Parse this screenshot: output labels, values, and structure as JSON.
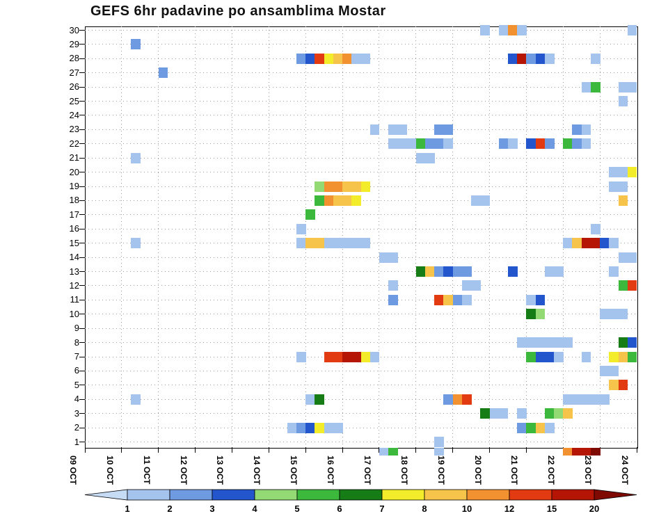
{
  "chart_data": {
    "type": "heatmap",
    "title": "GEFS 6hr padavine po ansamblima Mostar",
    "xlabel": "",
    "ylabel": "",
    "x_labels": [
      "09 OCT",
      "10 OCT",
      "11 OCT",
      "12 OCT",
      "13 OCT",
      "14 OCT",
      "15 OCT",
      "16 OCT",
      "17 OCT",
      "18 OCT",
      "19 OCT",
      "20 OCT",
      "21 OCT",
      "22 OCT",
      "23 OCT",
      "24 OCT"
    ],
    "y_labels": [
      "30",
      "29",
      "28",
      "27",
      "26",
      "25",
      "24",
      "23",
      "22",
      "21",
      "20",
      "19",
      "18",
      "17",
      "16",
      "15",
      "14",
      "13",
      "12",
      "11",
      "10",
      "9",
      "8",
      "7",
      "6",
      "5",
      "4",
      "3",
      "2",
      "1"
    ],
    "grid": "dotted",
    "colorbar": {
      "values": [
        1,
        2,
        3,
        4,
        5,
        6,
        7,
        8,
        10,
        12,
        15,
        20
      ],
      "tick_labels": [
        "1",
        "2",
        "3",
        "4",
        "5",
        "6",
        "7",
        "8",
        "10",
        "12",
        "15",
        "20"
      ],
      "colors": [
        "#c6dcf5",
        "#a4c4ee",
        "#6d9ae0",
        "#2356cc",
        "#93da74",
        "#3cb83c",
        "#167c16",
        "#f2ec2a",
        "#f6c44b",
        "#f19130",
        "#e23b12",
        "#b41505",
        "#7e0a02"
      ]
    },
    "cells_format": "[ensemble_member_row, day_index_from_09OCT, six_hour_slot_0to3, color_level_index]",
    "cells": [
      [
        30,
        10,
        3,
        1
      ],
      [
        30,
        11,
        1,
        1
      ],
      [
        30,
        11,
        2,
        9
      ],
      [
        30,
        11,
        3,
        1
      ],
      [
        30,
        14,
        3,
        1
      ],
      [
        29,
        1,
        1,
        2
      ],
      [
        28,
        5,
        3,
        2
      ],
      [
        28,
        6,
        0,
        3
      ],
      [
        28,
        6,
        1,
        10
      ],
      [
        28,
        6,
        2,
        7
      ],
      [
        28,
        6,
        3,
        8
      ],
      [
        28,
        7,
        0,
        9
      ],
      [
        28,
        7,
        1,
        1
      ],
      [
        28,
        7,
        2,
        1
      ],
      [
        28,
        11,
        2,
        3
      ],
      [
        28,
        11,
        3,
        11
      ],
      [
        28,
        12,
        0,
        2
      ],
      [
        28,
        12,
        1,
        3
      ],
      [
        28,
        12,
        2,
        1
      ],
      [
        28,
        13,
        3,
        1
      ],
      [
        27,
        2,
        0,
        2
      ],
      [
        26,
        13,
        2,
        1
      ],
      [
        26,
        13,
        3,
        5
      ],
      [
        26,
        14,
        2,
        1
      ],
      [
        26,
        14,
        3,
        1
      ],
      [
        25,
        14,
        2,
        1
      ],
      [
        23,
        7,
        3,
        1
      ],
      [
        23,
        8,
        1,
        1
      ],
      [
        23,
        8,
        2,
        1
      ],
      [
        23,
        9,
        2,
        2
      ],
      [
        23,
        9,
        3,
        2
      ],
      [
        23,
        13,
        1,
        2
      ],
      [
        23,
        13,
        2,
        1
      ],
      [
        22,
        8,
        1,
        1
      ],
      [
        22,
        8,
        2,
        1
      ],
      [
        22,
        8,
        3,
        1
      ],
      [
        22,
        9,
        0,
        5
      ],
      [
        22,
        9,
        1,
        2
      ],
      [
        22,
        9,
        2,
        2
      ],
      [
        22,
        9,
        3,
        1
      ],
      [
        22,
        11,
        1,
        2
      ],
      [
        22,
        11,
        2,
        1
      ],
      [
        22,
        12,
        0,
        3
      ],
      [
        22,
        12,
        1,
        10
      ],
      [
        22,
        12,
        2,
        2
      ],
      [
        22,
        13,
        0,
        5
      ],
      [
        22,
        13,
        1,
        2
      ],
      [
        22,
        13,
        2,
        1
      ],
      [
        21,
        1,
        1,
        1
      ],
      [
        21,
        9,
        0,
        1
      ],
      [
        21,
        9,
        1,
        1
      ],
      [
        20,
        14,
        1,
        1
      ],
      [
        20,
        14,
        2,
        1
      ],
      [
        20,
        14,
        3,
        7
      ],
      [
        19,
        6,
        1,
        4
      ],
      [
        19,
        6,
        2,
        9
      ],
      [
        19,
        6,
        3,
        9
      ],
      [
        19,
        7,
        0,
        8
      ],
      [
        19,
        7,
        1,
        8
      ],
      [
        19,
        7,
        2,
        7
      ],
      [
        19,
        14,
        1,
        1
      ],
      [
        19,
        14,
        2,
        1
      ],
      [
        18,
        6,
        1,
        5
      ],
      [
        18,
        6,
        2,
        9
      ],
      [
        18,
        6,
        3,
        8
      ],
      [
        18,
        7,
        0,
        8
      ],
      [
        18,
        7,
        1,
        7
      ],
      [
        18,
        10,
        2,
        1
      ],
      [
        18,
        10,
        3,
        1
      ],
      [
        18,
        14,
        2,
        8
      ],
      [
        17,
        6,
        0,
        5
      ],
      [
        16,
        5,
        3,
        1
      ],
      [
        16,
        13,
        3,
        1
      ],
      [
        15,
        1,
        1,
        1
      ],
      [
        15,
        5,
        3,
        1
      ],
      [
        15,
        6,
        0,
        8
      ],
      [
        15,
        6,
        1,
        8
      ],
      [
        15,
        6,
        2,
        1
      ],
      [
        15,
        6,
        3,
        1
      ],
      [
        15,
        7,
        0,
        1
      ],
      [
        15,
        7,
        1,
        1
      ],
      [
        15,
        7,
        2,
        1
      ],
      [
        15,
        13,
        0,
        1
      ],
      [
        15,
        13,
        1,
        8
      ],
      [
        15,
        13,
        2,
        11
      ],
      [
        15,
        13,
        3,
        11
      ],
      [
        15,
        14,
        0,
        3
      ],
      [
        15,
        14,
        1,
        1
      ],
      [
        14,
        8,
        0,
        1
      ],
      [
        14,
        8,
        1,
        1
      ],
      [
        14,
        14,
        2,
        1
      ],
      [
        14,
        14,
        3,
        1
      ],
      [
        13,
        9,
        0,
        6
      ],
      [
        13,
        9,
        1,
        8
      ],
      [
        13,
        9,
        2,
        2
      ],
      [
        13,
        9,
        3,
        3
      ],
      [
        13,
        10,
        0,
        2
      ],
      [
        13,
        10,
        1,
        2
      ],
      [
        13,
        11,
        2,
        3
      ],
      [
        13,
        12,
        2,
        1
      ],
      [
        13,
        12,
        3,
        1
      ],
      [
        13,
        14,
        1,
        1
      ],
      [
        12,
        8,
        1,
        1
      ],
      [
        12,
        10,
        1,
        1
      ],
      [
        12,
        10,
        2,
        1
      ],
      [
        12,
        14,
        2,
        5
      ],
      [
        12,
        14,
        3,
        10
      ],
      [
        11,
        8,
        1,
        2
      ],
      [
        11,
        9,
        2,
        10
      ],
      [
        11,
        9,
        3,
        8
      ],
      [
        11,
        10,
        0,
        2
      ],
      [
        11,
        10,
        1,
        1
      ],
      [
        11,
        12,
        0,
        1
      ],
      [
        11,
        12,
        1,
        3
      ],
      [
        10,
        12,
        0,
        6
      ],
      [
        10,
        12,
        1,
        4
      ],
      [
        10,
        14,
        0,
        1
      ],
      [
        10,
        14,
        1,
        1
      ],
      [
        10,
        14,
        2,
        1
      ],
      [
        8,
        11,
        3,
        1
      ],
      [
        8,
        12,
        0,
        1
      ],
      [
        8,
        12,
        1,
        1
      ],
      [
        8,
        12,
        2,
        1
      ],
      [
        8,
        12,
        3,
        1
      ],
      [
        8,
        13,
        0,
        1
      ],
      [
        8,
        14,
        2,
        6
      ],
      [
        8,
        14,
        3,
        3
      ],
      [
        7,
        5,
        3,
        1
      ],
      [
        7,
        6,
        2,
        10
      ],
      [
        7,
        6,
        3,
        10
      ],
      [
        7,
        7,
        0,
        11
      ],
      [
        7,
        7,
        1,
        11
      ],
      [
        7,
        7,
        2,
        7
      ],
      [
        7,
        7,
        3,
        1
      ],
      [
        7,
        12,
        0,
        5
      ],
      [
        7,
        12,
        1,
        3
      ],
      [
        7,
        12,
        2,
        3
      ],
      [
        7,
        12,
        3,
        1
      ],
      [
        7,
        13,
        2,
        1
      ],
      [
        7,
        14,
        1,
        7
      ],
      [
        7,
        14,
        2,
        8
      ],
      [
        7,
        14,
        3,
        5
      ],
      [
        6,
        14,
        0,
        1
      ],
      [
        6,
        14,
        1,
        1
      ],
      [
        5,
        14,
        1,
        8
      ],
      [
        5,
        14,
        2,
        10
      ],
      [
        4,
        1,
        1,
        1
      ],
      [
        4,
        6,
        0,
        1
      ],
      [
        4,
        6,
        1,
        6
      ],
      [
        4,
        9,
        3,
        2
      ],
      [
        4,
        10,
        0,
        9
      ],
      [
        4,
        10,
        1,
        10
      ],
      [
        4,
        13,
        0,
        1
      ],
      [
        4,
        13,
        1,
        1
      ],
      [
        4,
        13,
        2,
        1
      ],
      [
        4,
        13,
        3,
        1
      ],
      [
        4,
        14,
        0,
        1
      ],
      [
        3,
        10,
        3,
        6
      ],
      [
        3,
        11,
        0,
        1
      ],
      [
        3,
        11,
        1,
        1
      ],
      [
        3,
        11,
        3,
        1
      ],
      [
        3,
        12,
        2,
        5
      ],
      [
        3,
        12,
        3,
        4
      ],
      [
        3,
        13,
        0,
        8
      ],
      [
        2,
        5,
        2,
        1
      ],
      [
        2,
        5,
        3,
        2
      ],
      [
        2,
        6,
        0,
        3
      ],
      [
        2,
        6,
        1,
        7
      ],
      [
        2,
        6,
        2,
        1
      ],
      [
        2,
        6,
        3,
        1
      ],
      [
        2,
        11,
        3,
        2
      ],
      [
        2,
        12,
        0,
        5
      ],
      [
        2,
        12,
        1,
        8
      ],
      [
        2,
        12,
        2,
        1
      ],
      [
        1,
        9,
        2,
        1
      ],
      [
        0,
        8,
        0,
        1
      ],
      [
        0,
        8,
        1,
        5
      ],
      [
        0,
        9,
        2,
        1
      ],
      [
        0,
        13,
        0,
        9
      ],
      [
        0,
        13,
        1,
        11
      ],
      [
        0,
        13,
        2,
        11
      ],
      [
        0,
        13,
        3,
        12
      ]
    ]
  }
}
